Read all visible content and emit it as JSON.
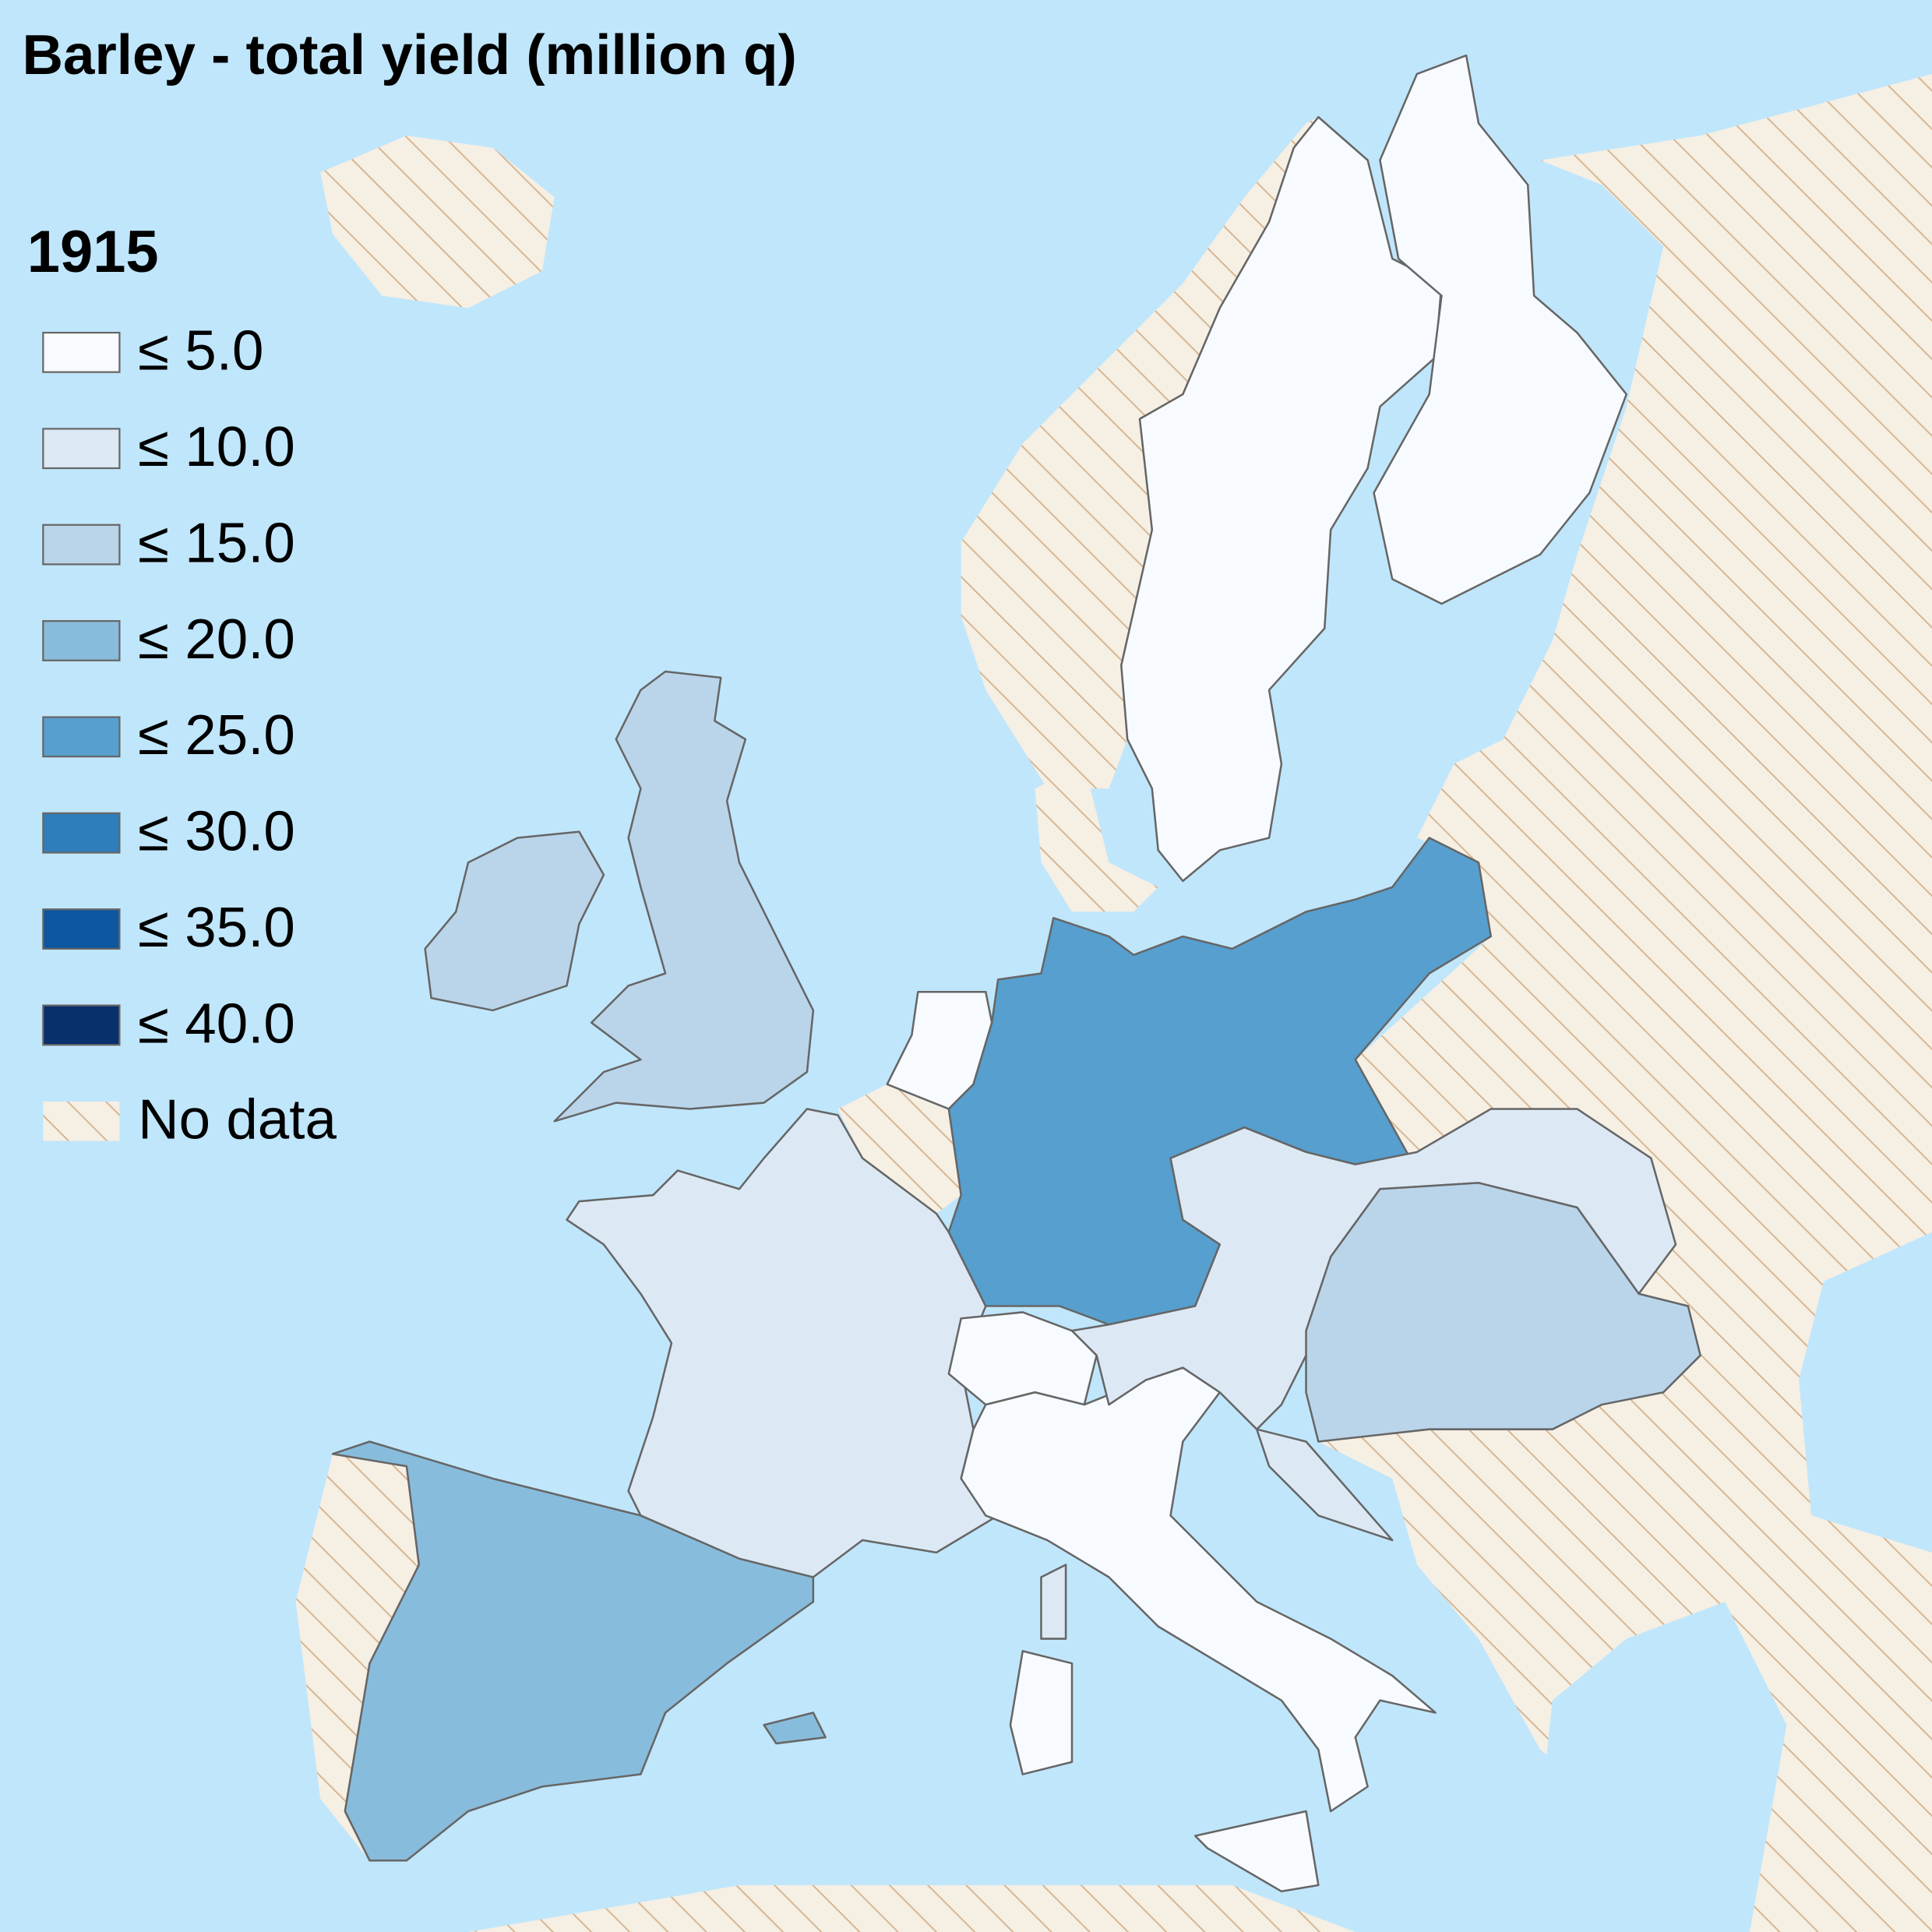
{
  "title": "Barley - total yield (million q)",
  "legend": {
    "title": "1915",
    "items": [
      {
        "label": "≤ 5.0",
        "color": "#f7fbff"
      },
      {
        "label": "≤ 10.0",
        "color": "#dce9f5"
      },
      {
        "label": "≤ 15.0",
        "color": "#bad5ea"
      },
      {
        "label": "≤ 20.0",
        "color": "#88bcdc"
      },
      {
        "label": "≤ 25.0",
        "color": "#569fcf"
      },
      {
        "label": "≤ 30.0",
        "color": "#2e7ebc"
      },
      {
        "label": "≤ 35.0",
        "color": "#0d56a0"
      },
      {
        "label": "≤ 40.0",
        "color": "#08306b"
      },
      {
        "label": "No data",
        "color": "#f5efe4",
        "hatch": "#d6b48f"
      }
    ]
  }
}
